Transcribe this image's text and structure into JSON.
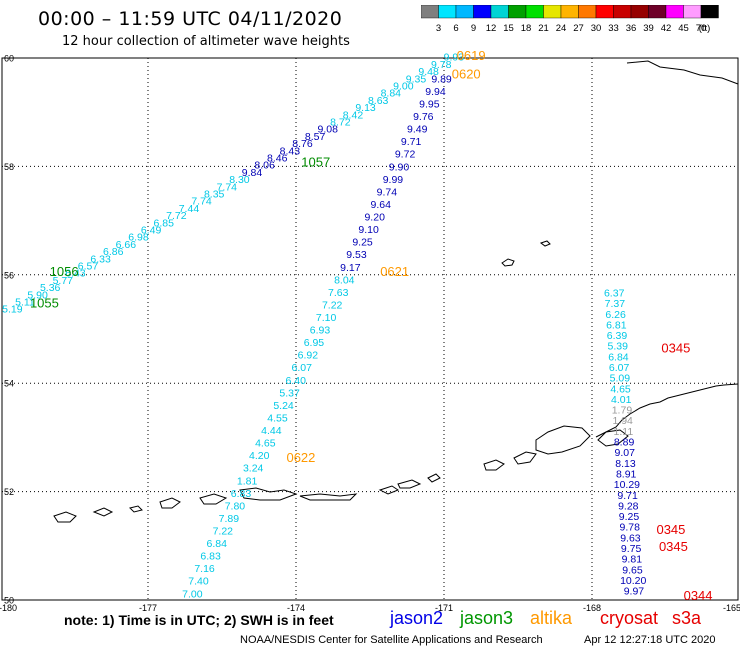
{
  "title": "00:00 – 11:59 UTC 04/11/2020",
  "subtitle": "12 hour collection of altimeter wave heights",
  "colorbar": {
    "ticks": [
      "3",
      "6",
      "9",
      "12",
      "15",
      "18",
      "21",
      "24",
      "27",
      "30",
      "33",
      "36",
      "39",
      "42",
      "45",
      "70"
    ],
    "unit": "(ft)",
    "colors": [
      "#7f7f7f",
      "#00e5ff",
      "#00b8ff",
      "#0000ff",
      "#00d4d4",
      "#00a000",
      "#00e000",
      "#e6e600",
      "#ffb400",
      "#ff7800",
      "#ff0000",
      "#c80000",
      "#960000",
      "#6e0028",
      "#ff00ff",
      "#ff9cff",
      "#000000"
    ]
  },
  "map": {
    "lat_labels": [
      "60",
      "58",
      "56",
      "54",
      "52",
      "50"
    ],
    "lon_labels": [
      "-180",
      "-177",
      "-174",
      "-171",
      "-168",
      "-165"
    ],
    "lat_range": [
      50,
      60
    ],
    "lon_range": [
      -180,
      -165
    ]
  },
  "tracks": [
    {
      "name": "jason3 track A",
      "color": "#00c8e6",
      "labels": [
        "5.19",
        "5.11",
        "5.90",
        "5.36",
        "5.77",
        "6.43",
        "6.57",
        "6.33",
        "6.86",
        "6.66",
        "6.98",
        "6.49",
        "6.85",
        "7.72",
        "7.44",
        "7.74",
        "8.35",
        "7.74",
        "8.30",
        "9.84",
        "8.06",
        "8.46",
        "8.43",
        "8.76",
        "8.57",
        "9.08",
        "8.72",
        "8.42",
        "9.13",
        "8.63",
        "8.84",
        "9.00",
        "9.35",
        "9.48",
        "9.78",
        "9.93"
      ],
      "dark": [
        19,
        25
      ],
      "start": [
        -179.75,
        55.3
      ],
      "end": [
        -170.8,
        59.95
      ]
    },
    {
      "name": "altika track",
      "color": "#00c8e6",
      "labels": [
        "7.00",
        "7.40",
        "7.16",
        "6.83",
        "6.84",
        "7.22",
        "7.89",
        "7.80",
        "6.83",
        "1.81",
        "3.24",
        "4.20",
        "4.65",
        "4.44",
        "4.55",
        "5.24",
        "5.37",
        "6.40",
        "6.07",
        "6.92",
        "6.95",
        "6.93",
        "7.10",
        "7.22",
        "7.63",
        "8.04",
        "9.17",
        "9.53",
        "9.25",
        "9.10",
        "9.20",
        "9.64",
        "9.74",
        "9.99",
        "9.90",
        "9.72",
        "9.71",
        "9.49",
        "9.76",
        "9.95",
        "9.94",
        "9.89"
      ],
      "dark_from": 26,
      "start": [
        -176.1,
        50.05
      ],
      "end": [
        -171.05,
        59.55
      ]
    },
    {
      "name": "cryosat track",
      "color": "#00c8e6",
      "labels": [
        "6.37",
        "7.37",
        "6.26",
        "6.81",
        "6.39",
        "5.39",
        "6.84",
        "6.07",
        "5.09",
        "4.65",
        "4.01",
        "1.79",
        "1.94",
        "1.11",
        "8.89",
        "9.07",
        "8.13",
        "8.91",
        "10.29",
        "9.71",
        "9.28",
        "9.25",
        "9.78",
        "9.63",
        "9.75",
        "9.81",
        "9.65",
        "10.20",
        "9.97"
      ],
      "dark_from": 14,
      "gray": [
        11,
        12,
        13
      ],
      "start": [
        -167.55,
        55.6
      ],
      "end": [
        -167.15,
        50.1
      ]
    }
  ],
  "time_labels": [
    {
      "text": "0619",
      "color": "#ff9900",
      "lon": -170.45,
      "lat": 59.96
    },
    {
      "text": "0620",
      "color": "#ff9900",
      "lon": -170.55,
      "lat": 59.62
    },
    {
      "text": "1057",
      "color": "#008c00",
      "lon": -173.6,
      "lat": 58.0
    },
    {
      "text": "1056",
      "color": "#008c00",
      "lon": -178.7,
      "lat": 55.98
    },
    {
      "text": "1055",
      "color": "#008c00",
      "lon": -179.1,
      "lat": 55.4
    },
    {
      "text": "0621",
      "color": "#ff9900",
      "lon": -172.0,
      "lat": 55.98
    },
    {
      "text": "0622",
      "color": "#ff9900",
      "lon": -173.9,
      "lat": 52.55
    },
    {
      "text": "0345",
      "color": "#e60000",
      "lon": -166.3,
      "lat": 54.57
    },
    {
      "text": "0345",
      "color": "#e60000",
      "lon": -166.4,
      "lat": 51.22
    },
    {
      "text": "0345",
      "color": "#e60000",
      "lon": -166.35,
      "lat": 50.9
    },
    {
      "text": "0344",
      "color": "#e60000",
      "lon": -165.85,
      "lat": 50.0
    }
  ],
  "note": "note:  1) Time is in UTC;  2) SWH is in feet",
  "legend": [
    {
      "text": "jason2",
      "color": "#0000e6"
    },
    {
      "text": "jason3",
      "color": "#009600"
    },
    {
      "text": "altika",
      "color": "#ff9900"
    },
    {
      "text": "cryosat",
      "color": "#e60000"
    },
    {
      "text": "s3a",
      "color": "#e60000"
    }
  ],
  "credit": "NOAA/NESDIS Center for Satellite Applications and Research",
  "timestamp": "Apr 12 12:27:18 UTC 2020"
}
